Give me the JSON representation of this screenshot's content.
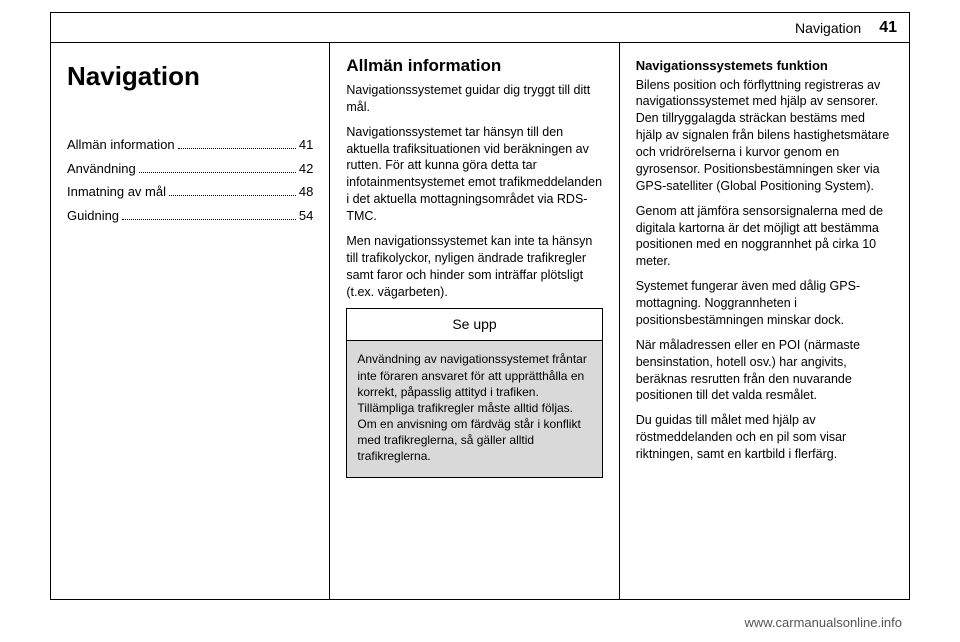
{
  "header": {
    "section": "Navigation",
    "page_number": "41"
  },
  "toc": {
    "title": "Navigation",
    "items": [
      {
        "label": "Allmän information",
        "page": "41"
      },
      {
        "label": "Användning",
        "page": "42"
      },
      {
        "label": "Inmatning av mål",
        "page": "48"
      },
      {
        "label": "Guidning",
        "page": "54"
      }
    ]
  },
  "col2": {
    "heading": "Allmän information",
    "p1": "Navigationssystemet guidar dig tryggt till ditt mål.",
    "p2": "Navigationssystemet tar hänsyn till den aktuella trafiksituationen vid beräkningen av rutten. För att kunna göra detta tar infotainmentsystemet emot trafikmeddelanden i det aktuella mottagningsområdet via RDS-TMC.",
    "p3": "Men navigationssystemet kan inte ta hänsyn till trafikolyckor, nyligen ändrade trafikregler samt faror och hinder som inträffar plötsligt (t.ex. vägarbeten).",
    "caution": {
      "title": "Se upp",
      "body": "Användning av navigationssystemet fråntar inte föraren ansvaret för att upprätthålla en korrekt, påpasslig attityd i trafiken. Tillämpliga trafikregler måste alltid följas. Om en anvisning om färdväg står i konflikt med trafikreglerna, så gäller alltid trafikreglerna."
    }
  },
  "col3": {
    "heading": "Navigationssystemets funktion",
    "p1": "Bilens position och förflyttning registreras av navigationssystemet med hjälp av sensorer. Den tillryggalagda sträckan bestäms med hjälp av signalen från bilens hastighetsmätare och vridrörelserna i kurvor genom en gyrosensor. Positionsbestämningen sker via GPS-satelliter (Global Positioning System).",
    "p2": "Genom att jämföra sensorsignalerna med de digitala kartorna är det möjligt att bestämma positionen med en noggrannhet på cirka 10 meter.",
    "p3": "Systemet fungerar även med dålig GPS-mottagning. Noggrannheten i positionsbestämningen minskar dock.",
    "p4": "När måladressen eller en POI (närmaste bensinstation, hotell osv.) har angivits, beräknas resrutten från den nuvarande positionen till det valda resmålet.",
    "p5": "Du guidas till målet med hjälp av röstmeddelanden och en pil som visar riktningen, samt en kartbild i flerfärg."
  },
  "footer": {
    "url": "www.carmanualsonline.info"
  }
}
